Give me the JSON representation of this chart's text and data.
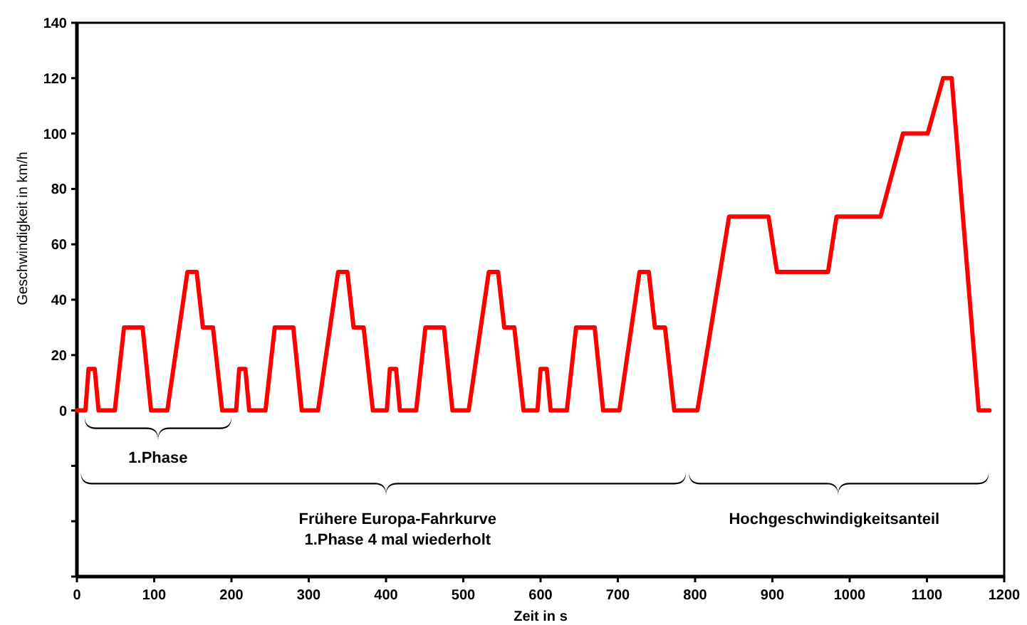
{
  "chart_data": {
    "type": "line",
    "xlabel": "Zeit in s",
    "ylabel": "Geschwindigkeit in km/h",
    "x": [
      0,
      11,
      15,
      23,
      28,
      49,
      61,
      85,
      96,
      117,
      143,
      155,
      163,
      176,
      188,
      195,
      206,
      210,
      218,
      223,
      244,
      256,
      280,
      291,
      312,
      338,
      350,
      358,
      371,
      383,
      390,
      401,
      405,
      413,
      418,
      439,
      451,
      475,
      486,
      507,
      533,
      545,
      553,
      566,
      578,
      585,
      596,
      600,
      608,
      613,
      634,
      646,
      670,
      681,
      702,
      728,
      740,
      748,
      761,
      773,
      780,
      803,
      844,
      895,
      906,
      972,
      983,
      1040,
      1069,
      1101,
      1121,
      1132,
      1167,
      1181
    ],
    "series": [
      {
        "color": "#ff0000",
        "values": [
          0,
          0,
          15,
          15,
          0,
          0,
          30,
          30,
          0,
          0,
          50,
          50,
          30,
          30,
          0,
          0,
          0,
          15,
          15,
          0,
          0,
          30,
          30,
          0,
          0,
          50,
          50,
          30,
          30,
          0,
          0,
          0,
          15,
          15,
          0,
          0,
          30,
          30,
          0,
          0,
          50,
          50,
          30,
          30,
          0,
          0,
          0,
          15,
          15,
          0,
          0,
          30,
          30,
          0,
          0,
          50,
          50,
          30,
          30,
          0,
          0,
          0,
          70,
          70,
          50,
          50,
          70,
          70,
          100,
          100,
          120,
          120,
          0,
          0
        ]
      }
    ],
    "xlim": [
      0,
      1200
    ],
    "xticks": [
      0,
      100,
      200,
      300,
      400,
      500,
      600,
      700,
      800,
      900,
      1000,
      1100,
      1200
    ],
    "ylim": [
      -60,
      140
    ],
    "yticks": [
      {
        "value": -60,
        "label": null
      },
      {
        "value": -40,
        "label": null
      },
      {
        "value": -20,
        "label": null
      },
      0,
      20,
      40,
      60,
      80,
      100,
      120,
      140
    ],
    "grid": false,
    "marker": "none",
    "line_style": "solid",
    "annotations": [
      "1.Phase",
      "Frühere Europa-Fahrkurve\n1.Phase 4 mal wiederholt",
      "Hochgeschwindigkeitsanteil"
    ]
  }
}
